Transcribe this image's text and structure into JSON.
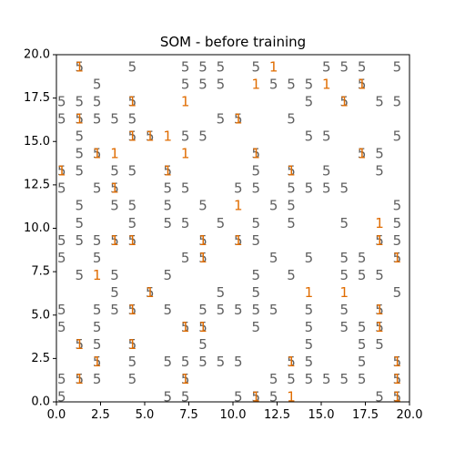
{
  "chart_data": {
    "type": "scatter",
    "title": "SOM - before training",
    "xlabel": "",
    "ylabel": "",
    "xlim": [
      0,
      20
    ],
    "ylim": [
      0,
      20
    ],
    "grid": false,
    "x_ticks": [
      "0.0",
      "2.5",
      "5.0",
      "7.5",
      "10.0",
      "12.5",
      "15.0",
      "17.5",
      "20.0"
    ],
    "y_ticks": [
      "0.0",
      "2.5",
      "5.0",
      "7.5",
      "10.0",
      "12.5",
      "15.0",
      "17.5",
      "20.0"
    ],
    "colors": {
      "label_5": "#5f5f5f",
      "label_1": "#e06c00"
    },
    "series": [
      {
        "label": "5",
        "points": [
          [
            1.3,
            19.3
          ],
          [
            4.3,
            19.3
          ],
          [
            7.3,
            19.3
          ],
          [
            8.3,
            19.3
          ],
          [
            9.3,
            19.3
          ],
          [
            11.3,
            19.3
          ],
          [
            15.3,
            19.3
          ],
          [
            16.3,
            19.3
          ],
          [
            17.3,
            19.3
          ],
          [
            19.3,
            19.3
          ],
          [
            2.3,
            18.3
          ],
          [
            7.3,
            18.3
          ],
          [
            8.3,
            18.3
          ],
          [
            9.3,
            18.3
          ],
          [
            12.3,
            18.3
          ],
          [
            13.3,
            18.3
          ],
          [
            14.3,
            18.3
          ],
          [
            17.3,
            18.3
          ],
          [
            0.3,
            17.3
          ],
          [
            1.3,
            17.3
          ],
          [
            2.3,
            17.3
          ],
          [
            4.3,
            17.3
          ],
          [
            14.3,
            17.3
          ],
          [
            16.3,
            17.3
          ],
          [
            18.3,
            17.3
          ],
          [
            19.3,
            17.3
          ],
          [
            0.3,
            16.3
          ],
          [
            1.3,
            16.3
          ],
          [
            2.3,
            16.3
          ],
          [
            3.3,
            16.3
          ],
          [
            4.3,
            16.3
          ],
          [
            9.3,
            16.3
          ],
          [
            10.3,
            16.3
          ],
          [
            13.3,
            16.3
          ],
          [
            1.3,
            15.3
          ],
          [
            4.3,
            15.3
          ],
          [
            5.3,
            15.3
          ],
          [
            7.3,
            15.3
          ],
          [
            8.3,
            15.3
          ],
          [
            14.3,
            15.3
          ],
          [
            15.3,
            15.3
          ],
          [
            19.3,
            15.3
          ],
          [
            1.3,
            14.3
          ],
          [
            2.3,
            14.3
          ],
          [
            11.3,
            14.3
          ],
          [
            17.3,
            14.3
          ],
          [
            18.3,
            14.3
          ],
          [
            0.3,
            13.3
          ],
          [
            1.3,
            13.3
          ],
          [
            3.3,
            13.3
          ],
          [
            4.3,
            13.3
          ],
          [
            6.3,
            13.3
          ],
          [
            11.3,
            13.3
          ],
          [
            13.3,
            13.3
          ],
          [
            15.3,
            13.3
          ],
          [
            18.3,
            13.3
          ],
          [
            0.3,
            12.3
          ],
          [
            2.3,
            12.3
          ],
          [
            3.3,
            12.3
          ],
          [
            6.3,
            12.3
          ],
          [
            7.3,
            12.3
          ],
          [
            10.3,
            12.3
          ],
          [
            11.3,
            12.3
          ],
          [
            13.3,
            12.3
          ],
          [
            14.3,
            12.3
          ],
          [
            15.3,
            12.3
          ],
          [
            16.3,
            12.3
          ],
          [
            1.3,
            11.3
          ],
          [
            3.3,
            11.3
          ],
          [
            4.3,
            11.3
          ],
          [
            6.3,
            11.3
          ],
          [
            8.3,
            11.3
          ],
          [
            12.3,
            11.3
          ],
          [
            13.3,
            11.3
          ],
          [
            19.3,
            11.3
          ],
          [
            1.3,
            10.3
          ],
          [
            4.3,
            10.3
          ],
          [
            6.3,
            10.3
          ],
          [
            7.3,
            10.3
          ],
          [
            9.3,
            10.3
          ],
          [
            11.3,
            10.3
          ],
          [
            13.3,
            10.3
          ],
          [
            16.3,
            10.3
          ],
          [
            19.3,
            10.3
          ],
          [
            0.3,
            9.3
          ],
          [
            1.3,
            9.3
          ],
          [
            2.3,
            9.3
          ],
          [
            3.3,
            9.3
          ],
          [
            4.3,
            9.3
          ],
          [
            8.3,
            9.3
          ],
          [
            10.3,
            9.3
          ],
          [
            11.3,
            9.3
          ],
          [
            18.3,
            9.3
          ],
          [
            19.3,
            9.3
          ],
          [
            0.3,
            8.3
          ],
          [
            2.3,
            8.3
          ],
          [
            7.3,
            8.3
          ],
          [
            8.3,
            8.3
          ],
          [
            12.3,
            8.3
          ],
          [
            14.3,
            8.3
          ],
          [
            16.3,
            8.3
          ],
          [
            17.3,
            8.3
          ],
          [
            19.3,
            8.3
          ],
          [
            1.3,
            7.3
          ],
          [
            3.3,
            7.3
          ],
          [
            6.3,
            7.3
          ],
          [
            11.3,
            7.3
          ],
          [
            13.3,
            7.3
          ],
          [
            16.3,
            7.3
          ],
          [
            17.3,
            7.3
          ],
          [
            18.3,
            7.3
          ],
          [
            3.3,
            6.3
          ],
          [
            5.3,
            6.3
          ],
          [
            9.3,
            6.3
          ],
          [
            11.3,
            6.3
          ],
          [
            19.3,
            6.3
          ],
          [
            0.3,
            5.3
          ],
          [
            2.3,
            5.3
          ],
          [
            3.3,
            5.3
          ],
          [
            4.3,
            5.3
          ],
          [
            6.3,
            5.3
          ],
          [
            8.3,
            5.3
          ],
          [
            9.3,
            5.3
          ],
          [
            10.3,
            5.3
          ],
          [
            11.3,
            5.3
          ],
          [
            12.3,
            5.3
          ],
          [
            14.3,
            5.3
          ],
          [
            16.3,
            5.3
          ],
          [
            18.3,
            5.3
          ],
          [
            0.3,
            4.3
          ],
          [
            2.3,
            4.3
          ],
          [
            7.3,
            4.3
          ],
          [
            8.3,
            4.3
          ],
          [
            11.3,
            4.3
          ],
          [
            14.3,
            4.3
          ],
          [
            16.3,
            4.3
          ],
          [
            17.3,
            4.3
          ],
          [
            18.3,
            4.3
          ],
          [
            1.3,
            3.3
          ],
          [
            2.3,
            3.3
          ],
          [
            4.3,
            3.3
          ],
          [
            8.3,
            3.3
          ],
          [
            14.3,
            3.3
          ],
          [
            17.3,
            3.3
          ],
          [
            18.3,
            3.3
          ],
          [
            2.3,
            2.3
          ],
          [
            4.3,
            2.3
          ],
          [
            6.3,
            2.3
          ],
          [
            7.3,
            2.3
          ],
          [
            8.3,
            2.3
          ],
          [
            9.3,
            2.3
          ],
          [
            10.3,
            2.3
          ],
          [
            13.3,
            2.3
          ],
          [
            14.3,
            2.3
          ],
          [
            17.3,
            2.3
          ],
          [
            19.3,
            2.3
          ],
          [
            0.3,
            1.3
          ],
          [
            1.3,
            1.3
          ],
          [
            2.3,
            1.3
          ],
          [
            4.3,
            1.3
          ],
          [
            7.3,
            1.3
          ],
          [
            12.3,
            1.3
          ],
          [
            13.3,
            1.3
          ],
          [
            14.3,
            1.3
          ],
          [
            15.3,
            1.3
          ],
          [
            16.3,
            1.3
          ],
          [
            17.3,
            1.3
          ],
          [
            19.3,
            1.3
          ],
          [
            0.3,
            0.3
          ],
          [
            6.3,
            0.3
          ],
          [
            7.3,
            0.3
          ],
          [
            10.3,
            0.3
          ],
          [
            11.3,
            0.3
          ],
          [
            12.3,
            0.3
          ],
          [
            18.3,
            0.3
          ],
          [
            19.3,
            0.3
          ]
        ]
      },
      {
        "label": "1",
        "points": [
          [
            1.3,
            19.3
          ],
          [
            12.3,
            19.3
          ],
          [
            11.3,
            18.3
          ],
          [
            15.3,
            18.3
          ],
          [
            17.3,
            18.3
          ],
          [
            4.3,
            17.3
          ],
          [
            7.3,
            17.3
          ],
          [
            16.3,
            17.3
          ],
          [
            1.3,
            16.3
          ],
          [
            10.3,
            16.3
          ],
          [
            4.3,
            15.3
          ],
          [
            5.3,
            15.3
          ],
          [
            6.3,
            15.3
          ],
          [
            2.3,
            14.3
          ],
          [
            3.3,
            14.3
          ],
          [
            7.3,
            14.3
          ],
          [
            11.3,
            14.3
          ],
          [
            17.3,
            14.3
          ],
          [
            0.3,
            13.3
          ],
          [
            6.3,
            13.3
          ],
          [
            13.3,
            13.3
          ],
          [
            3.3,
            12.3
          ],
          [
            10.3,
            11.3
          ],
          [
            18.3,
            10.3
          ],
          [
            3.3,
            9.3
          ],
          [
            4.3,
            9.3
          ],
          [
            8.3,
            9.3
          ],
          [
            10.3,
            9.3
          ],
          [
            18.3,
            9.3
          ],
          [
            8.3,
            8.3
          ],
          [
            19.3,
            8.3
          ],
          [
            2.3,
            7.3
          ],
          [
            5.3,
            6.3
          ],
          [
            14.3,
            6.3
          ],
          [
            16.3,
            6.3
          ],
          [
            4.3,
            5.3
          ],
          [
            18.3,
            5.3
          ],
          [
            7.3,
            4.3
          ],
          [
            8.3,
            4.3
          ],
          [
            18.3,
            4.3
          ],
          [
            1.3,
            3.3
          ],
          [
            4.3,
            3.3
          ],
          [
            2.3,
            2.3
          ],
          [
            13.3,
            2.3
          ],
          [
            19.3,
            2.3
          ],
          [
            1.3,
            1.3
          ],
          [
            7.3,
            1.3
          ],
          [
            19.3,
            1.3
          ],
          [
            11.3,
            0.3
          ],
          [
            13.3,
            0.3
          ],
          [
            19.3,
            0.3
          ]
        ]
      }
    ]
  }
}
